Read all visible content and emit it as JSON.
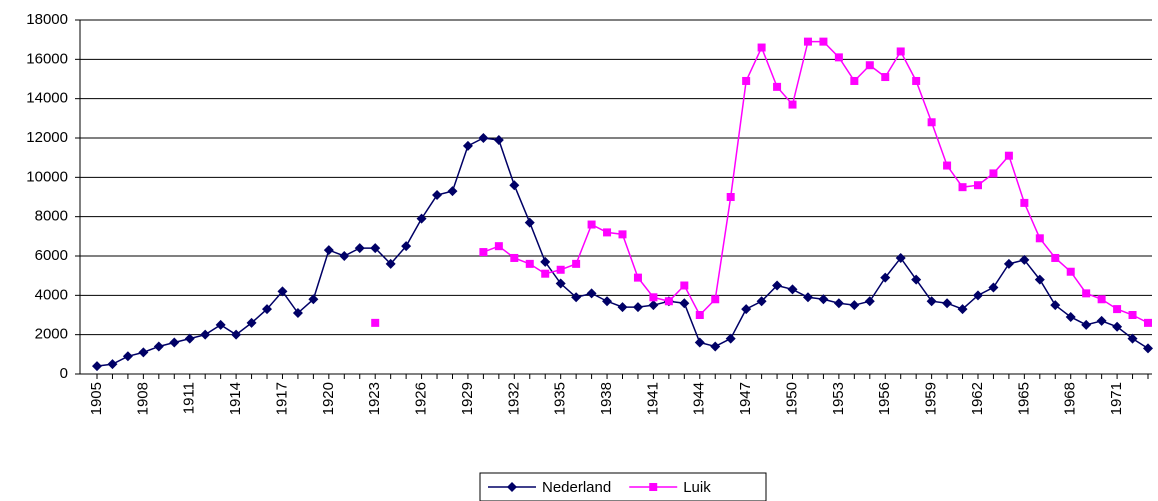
{
  "chart_data": {
    "type": "line",
    "categories": [
      "1905",
      null,
      null,
      "1908",
      null,
      null,
      "1911",
      null,
      null,
      "1914",
      null,
      null,
      "1917",
      null,
      null,
      "1920",
      null,
      null,
      "1923",
      null,
      null,
      "1926",
      null,
      null,
      "1929",
      null,
      null,
      "1932",
      null,
      null,
      "1935",
      null,
      null,
      "1938",
      null,
      null,
      "1941",
      null,
      null,
      "1944",
      null,
      null,
      "1947",
      null,
      null,
      "1950",
      null,
      null,
      "1953",
      null,
      null,
      "1956",
      null,
      null,
      "1959",
      null,
      null,
      "1962",
      null,
      null,
      "1965",
      null,
      null,
      "1968",
      null,
      null,
      "1971",
      null,
      null
    ],
    "series": [
      {
        "name": "Nederland",
        "color": "#000066",
        "marker": "diamond",
        "values": [
          400,
          500,
          900,
          1100,
          1400,
          1600,
          1800,
          2000,
          2500,
          2000,
          2600,
          3300,
          4200,
          3100,
          3800,
          6300,
          6000,
          6400,
          6400,
          5600,
          6500,
          7900,
          9100,
          9300,
          11600,
          12000,
          11900,
          9600,
          7700,
          5700,
          4600,
          3900,
          4100,
          3700,
          3400,
          3400,
          3500,
          3700,
          3600,
          1600,
          1400,
          1800,
          3300,
          3700,
          4500,
          4300,
          3900,
          3800,
          3600,
          3500,
          3700,
          4900,
          5900,
          4800,
          3700,
          3600,
          3300,
          4000,
          4400,
          5600,
          5800,
          4800,
          3500,
          2900,
          2500,
          2700,
          2400,
          1800,
          1300
        ]
      },
      {
        "name": "Luik",
        "color": "#ff00ff",
        "marker": "square",
        "values": [
          null,
          null,
          null,
          null,
          null,
          null,
          null,
          null,
          null,
          null,
          null,
          null,
          null,
          null,
          null,
          null,
          null,
          null,
          2600,
          null,
          null,
          null,
          null,
          null,
          null,
          6200,
          6500,
          5900,
          5600,
          5100,
          5300,
          5600,
          7600,
          7200,
          7100,
          4900,
          3900,
          3700,
          4500,
          3000,
          3800,
          9000,
          14900,
          16600,
          14600,
          13700,
          16900,
          16900,
          16100,
          14900,
          15700,
          15100,
          16400,
          14900,
          12800,
          10600,
          9500,
          9600,
          10200,
          11100,
          8700,
          6900,
          5900,
          5200,
          4100,
          3800,
          3300,
          3000,
          2600
        ]
      }
    ],
    "ylim": [
      0,
      18000
    ],
    "yticks": [
      0,
      2000,
      4000,
      6000,
      8000,
      10000,
      12000,
      14000,
      16000,
      18000
    ],
    "grid": true,
    "legend": "bottom"
  }
}
